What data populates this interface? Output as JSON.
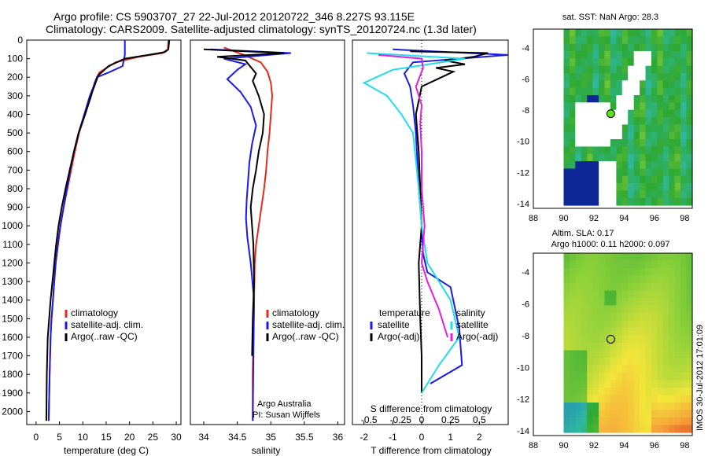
{
  "header": {
    "line1": "Argo profile: CS 5903707_27 22-Jul-2012 20120722_346 8.227S 93.115E",
    "line2": "Climatology: CARS2009. Satellite-adjusted climatology: synTS_20120724.nc (1.3d later)"
  },
  "side_stamp": "IMOS 30-Jul-2012 17:01:09",
  "colors": {
    "climatology": "#e32b1d",
    "satellite": "#1a1ae6",
    "argo": "#000000",
    "satellite_salinity": "#22dde6",
    "argo_salinity": "#e21ee0"
  },
  "chart_data": [
    {
      "type": "line",
      "panel": "temperature",
      "xlabel": "temperature (deg C)",
      "xlim": [
        -2,
        31
      ],
      "xticks": [
        0,
        5,
        10,
        15,
        20,
        25,
        30
      ],
      "ylim": [
        2070,
        0
      ],
      "yticks": [
        0,
        100,
        200,
        300,
        400,
        500,
        600,
        700,
        800,
        900,
        1000,
        1100,
        1200,
        1300,
        1400,
        1500,
        1600,
        1700,
        1800,
        1900,
        2000
      ],
      "legend": [
        "climatology",
        "satellite-adj. clim.",
        "Argo(..raw -QC)"
      ],
      "series": [
        {
          "name": "climatology",
          "color": "#e32b1d",
          "x": [
            28.3,
            28.2,
            27,
            22,
            17,
            13.5,
            12.5,
            11.8,
            10.5,
            9.2,
            8.3,
            7.5,
            6.7,
            5.9,
            5.2,
            4.6,
            4.2,
            3.9,
            3.6,
            3.3,
            3.1,
            2.9,
            2.7
          ],
          "y": [
            0,
            50,
            70,
            90,
            120,
            175,
            230,
            300,
            400,
            500,
            600,
            700,
            800,
            900,
            1000,
            1100,
            1200,
            1300,
            1400,
            1500,
            1600,
            1800,
            2050
          ]
        },
        {
          "name": "satellite-adj. clim.",
          "color": "#1a1ae6",
          "x": [
            19,
            19,
            18.5,
            15.5,
            13,
            12.3,
            11.5,
            10.3,
            9.1,
            8.1,
            7.3,
            6.6,
            5.9,
            5.2,
            4.7,
            4.2,
            3.9,
            3.6,
            3.3,
            3.1,
            2.9,
            2.7
          ],
          "y": [
            0,
            80,
            140,
            175,
            200,
            250,
            300,
            400,
            500,
            600,
            700,
            800,
            900,
            1000,
            1100,
            1200,
            1300,
            1400,
            1500,
            1600,
            1800,
            2050
          ]
        },
        {
          "name": "Argo(..raw -QC)",
          "color": "#000000",
          "x": [
            28.5,
            28.3,
            27.5,
            24,
            19,
            15.5,
            13.3,
            12,
            10.5,
            9.1,
            8.1,
            7.2,
            6.3,
            5.5,
            4.8,
            4.3,
            3.9,
            3.5,
            3.1,
            2.8,
            2.5,
            2.3,
            2.2
          ],
          "y": [
            0,
            50,
            65,
            80,
            100,
            140,
            190,
            280,
            400,
            500,
            600,
            700,
            800,
            900,
            1000,
            1100,
            1200,
            1300,
            1400,
            1500,
            1600,
            1800,
            2050
          ]
        }
      ]
    },
    {
      "type": "line",
      "panel": "salinity",
      "xlabel": "salinity",
      "xlim": [
        33.8,
        36.1
      ],
      "xticks": [
        34,
        34.5,
        35,
        35.5,
        36
      ],
      "ylim": [
        2070,
        0
      ],
      "legend": [
        "climatology",
        "satellite-adj. clim.",
        "Argo(..raw -QC)"
      ],
      "annotation": [
        "Argo Australia",
        "PI: Susan Wijffels"
      ],
      "series": [
        {
          "name": "climatology",
          "color": "#e32b1d",
          "x": [
            34.3,
            34.6,
            34.85,
            34.95,
            35.0,
            35.02,
            35.0,
            34.98,
            34.95,
            34.93,
            34.9,
            34.86,
            34.82,
            34.78,
            34.76,
            34.75,
            34.74,
            34.73,
            34.73
          ],
          "y": [
            40,
            80,
            120,
            170,
            230,
            300,
            400,
            500,
            600,
            700,
            800,
            900,
            1000,
            1100,
            1200,
            1400,
            1600,
            1800,
            2050
          ]
        },
        {
          "name": "satellite-adj. clim.",
          "color": "#1a1ae6",
          "x": [
            34.1,
            35.3,
            34.3,
            34.62,
            34.5,
            34.35,
            34.55,
            34.7,
            34.78,
            34.72,
            34.68,
            34.66,
            34.64,
            34.63,
            34.65,
            34.7,
            34.75,
            34.74,
            34.73
          ],
          "y": [
            50,
            70,
            100,
            130,
            160,
            210,
            280,
            360,
            460,
            560,
            660,
            760,
            860,
            960,
            1060,
            1200,
            1400,
            1700,
            2050
          ]
        },
        {
          "name": "Argo(..raw -QC)",
          "color": "#000000",
          "x": [
            34.0,
            35.2,
            34.2,
            34.62,
            34.78,
            34.73,
            34.82,
            34.9,
            34.88,
            34.82,
            34.78,
            34.73,
            34.7,
            34.72,
            34.74,
            34.75,
            34.73,
            34.72
          ],
          "y": [
            50,
            70,
            90,
            110,
            180,
            220,
            300,
            400,
            500,
            600,
            700,
            800,
            900,
            1000,
            1100,
            1300,
            1500,
            1700
          ]
        }
      ]
    },
    {
      "type": "line",
      "panel": "difference",
      "xlabel": "T difference from climatology",
      "xlabel_top": "S difference from climatology",
      "xlim": [
        -2.4,
        3.0
      ],
      "xticks": [
        -2,
        -1,
        0,
        1,
        2
      ],
      "s_xticks": [
        "-0.5",
        "-0.25",
        "0",
        "0.25",
        "0.5"
      ],
      "ylim": [
        2070,
        0
      ],
      "legend": [
        {
          "label": "temperature",
          "group": "T"
        },
        {
          "label": "satellite",
          "group": "T"
        },
        {
          "label": "Argo(-adj)",
          "group": "T"
        },
        {
          "label": "salinity",
          "group": "S"
        },
        {
          "label": "satellite",
          "group": "S"
        },
        {
          "label": "Argo(-adj)",
          "group": "S"
        }
      ],
      "series": [
        {
          "name": "T satellite",
          "color": "#1a1ae6",
          "x": [
            -1.0,
            3.0,
            -0.3,
            -0.6,
            -0.4,
            -0.3,
            -0.2,
            -0.15,
            -0.1,
            0.0,
            0.05,
            0.2,
            1.0,
            1.3,
            1.4,
            0.3
          ],
          "y": [
            50,
            80,
            120,
            180,
            250,
            350,
            500,
            650,
            800,
            1000,
            1150,
            1250,
            1330,
            1550,
            1750,
            1850
          ]
        },
        {
          "name": "T Argo(-adj)",
          "color": "#000000",
          "x": [
            -0.4,
            2.3,
            1.8,
            0.8,
            1.5,
            0.5,
            1.1,
            0.0,
            -0.2,
            -0.1,
            -0.05,
            0.0,
            -0.1,
            -0.05,
            0.0,
            0.0
          ],
          "y": [
            60,
            70,
            90,
            110,
            130,
            150,
            170,
            250,
            400,
            600,
            800,
            1000,
            1200,
            1500,
            1700,
            1900
          ]
        },
        {
          "name": "S satellite",
          "color": "#22dde6",
          "x": [
            -1.9,
            1.5,
            -1.0,
            -2.0,
            -1.2,
            -0.7,
            -0.3,
            -0.2,
            -0.1,
            0.0,
            0.2,
            1.0,
            1.3,
            0.6,
            0.0
          ],
          "y": [
            70,
            100,
            160,
            230,
            300,
            400,
            500,
            650,
            800,
            1000,
            1200,
            1400,
            1600,
            1750,
            1900
          ]
        },
        {
          "name": "S Argo(-adj)",
          "color": "#e21ee0",
          "x": [
            -1.5,
            0.0,
            0.05,
            -0.2,
            0.0,
            -0.05,
            0.0,
            0.0,
            0.1,
            0.0,
            0.2,
            0.6,
            0.9
          ],
          "y": [
            80,
            100,
            150,
            250,
            350,
            450,
            600,
            800,
            1000,
            1200,
            1300,
            1450,
            1600
          ]
        }
      ]
    },
    {
      "type": "heatmap",
      "panel": "sst-map",
      "title": "sat. SST: NaN Argo: 28.3",
      "xlim": [
        88,
        98.5
      ],
      "ylim": [
        -14.3,
        -2.8
      ],
      "xticks": [
        88,
        90,
        92,
        94,
        96,
        98
      ],
      "yticks": [
        -4,
        -6,
        -8,
        -10,
        -12,
        -14
      ],
      "argo_position": [
        93.115,
        -8.227
      ]
    },
    {
      "type": "heatmap",
      "panel": "sla-map",
      "title": [
        "Altim. SLA: 0.17",
        "Argo h1000: 0.11 h2000: 0.097"
      ],
      "xlim": [
        88,
        98.5
      ],
      "ylim": [
        -14.3,
        -2.8
      ],
      "xticks": [
        88,
        90,
        92,
        94,
        96,
        98
      ],
      "yticks": [
        -4,
        -6,
        -8,
        -10,
        -12,
        -14
      ],
      "argo_position": [
        93.115,
        -8.227
      ]
    }
  ]
}
